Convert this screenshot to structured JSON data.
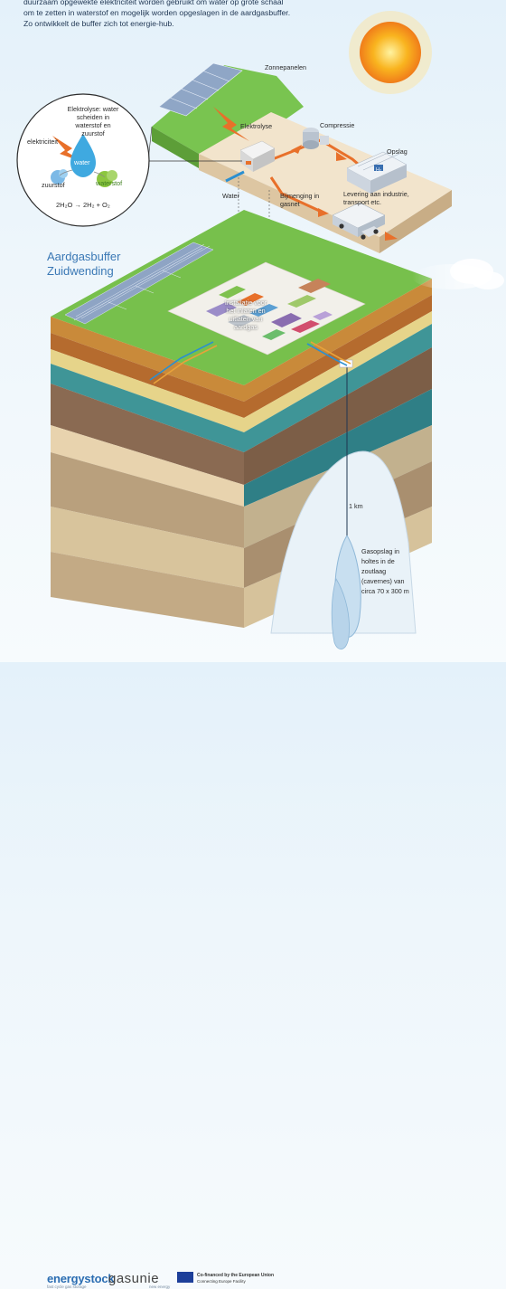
{
  "intro_text": "duurzaam opgewekte elektriciteit worden gebruikt om water op grote schaal om te zetten in waterstof en mogelijk worden opgeslagen in de aardgasbuffer. Zo ontwikkelt de buffer zich tot energie-hub.",
  "inset": {
    "zonnepanelen": "Zonnepanelen",
    "elektrolyse": "Elektrolyse",
    "compressie": "Compressie",
    "opslag": "Opslag",
    "water": "Water",
    "bijmenging": "Bijmenging in gasnet",
    "levering": "Levering aan industrie, transport etc."
  },
  "circle": {
    "title": "Elektrolyse: water scheiden in waterstof en zuurstof",
    "elektriciteit": "elektriciteit",
    "water": "water",
    "zuurstof": "zuurstof",
    "waterstof": "waterstof",
    "formula": "2H₂O → 2H₂ + O₂",
    "h2_tag": "H₂"
  },
  "buffer": {
    "title_line1": "Aardgasbuffer",
    "title_line2": "Zuidwending",
    "installatie": "Installatie voor het inlaten en uitlaten van aardgas",
    "depth": "1 km",
    "gasopslag": "Gasopslag in holtes in de zoutlaag (cavernes) van circa 70 x 300 m"
  },
  "footer": {
    "energystock": "energystock",
    "energystock_sub": "fast cycle gas storage",
    "gasunie": "gasunie",
    "gasunie_sub": "new energy",
    "eu_line1": "Co-financed by the European Union",
    "eu_line2": "Connecting Europe Facility"
  },
  "colors": {
    "sky": "#e4f1fa",
    "grass": "#6dbb45",
    "water_blue": "#2b8fd0",
    "hydrogen_orange": "#e8702a",
    "title_blue": "#3a78b5"
  }
}
